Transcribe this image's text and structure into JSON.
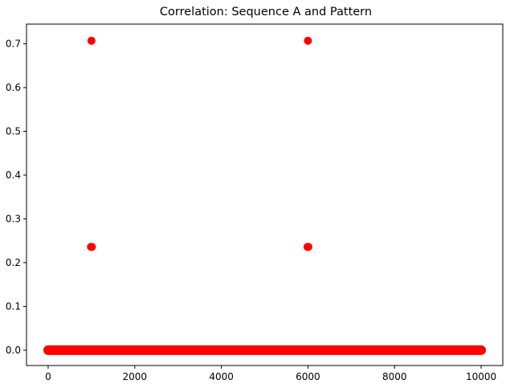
{
  "chart_data": {
    "type": "scatter",
    "title": "Correlation: Sequence A and Pattern",
    "xlabel": "",
    "ylabel": "",
    "xlim": [
      -500,
      10500
    ],
    "ylim": [
      -0.035,
      0.745
    ],
    "x_ticks": [
      0,
      2000,
      4000,
      6000,
      8000,
      10000
    ],
    "x_tick_labels": [
      "0",
      "2000",
      "4000",
      "6000",
      "8000",
      "10000"
    ],
    "y_ticks": [
      0.0,
      0.1,
      0.2,
      0.3,
      0.4,
      0.5,
      0.6,
      0.7
    ],
    "y_tick_labels": [
      "0.0",
      "0.1",
      "0.2",
      "0.3",
      "0.4",
      "0.5",
      "0.6",
      "0.7"
    ],
    "grid": false,
    "marker_color": "#ff0000",
    "baseline_series": {
      "x_start": 0,
      "x_end": 10000,
      "y": 0.0
    },
    "points": [
      {
        "x": 1000,
        "y": 0.707
      },
      {
        "x": 990,
        "y": 0.236
      },
      {
        "x": 1010,
        "y": 0.236
      },
      {
        "x": 6000,
        "y": 0.707
      },
      {
        "x": 5990,
        "y": 0.236
      },
      {
        "x": 6010,
        "y": 0.236
      }
    ]
  }
}
